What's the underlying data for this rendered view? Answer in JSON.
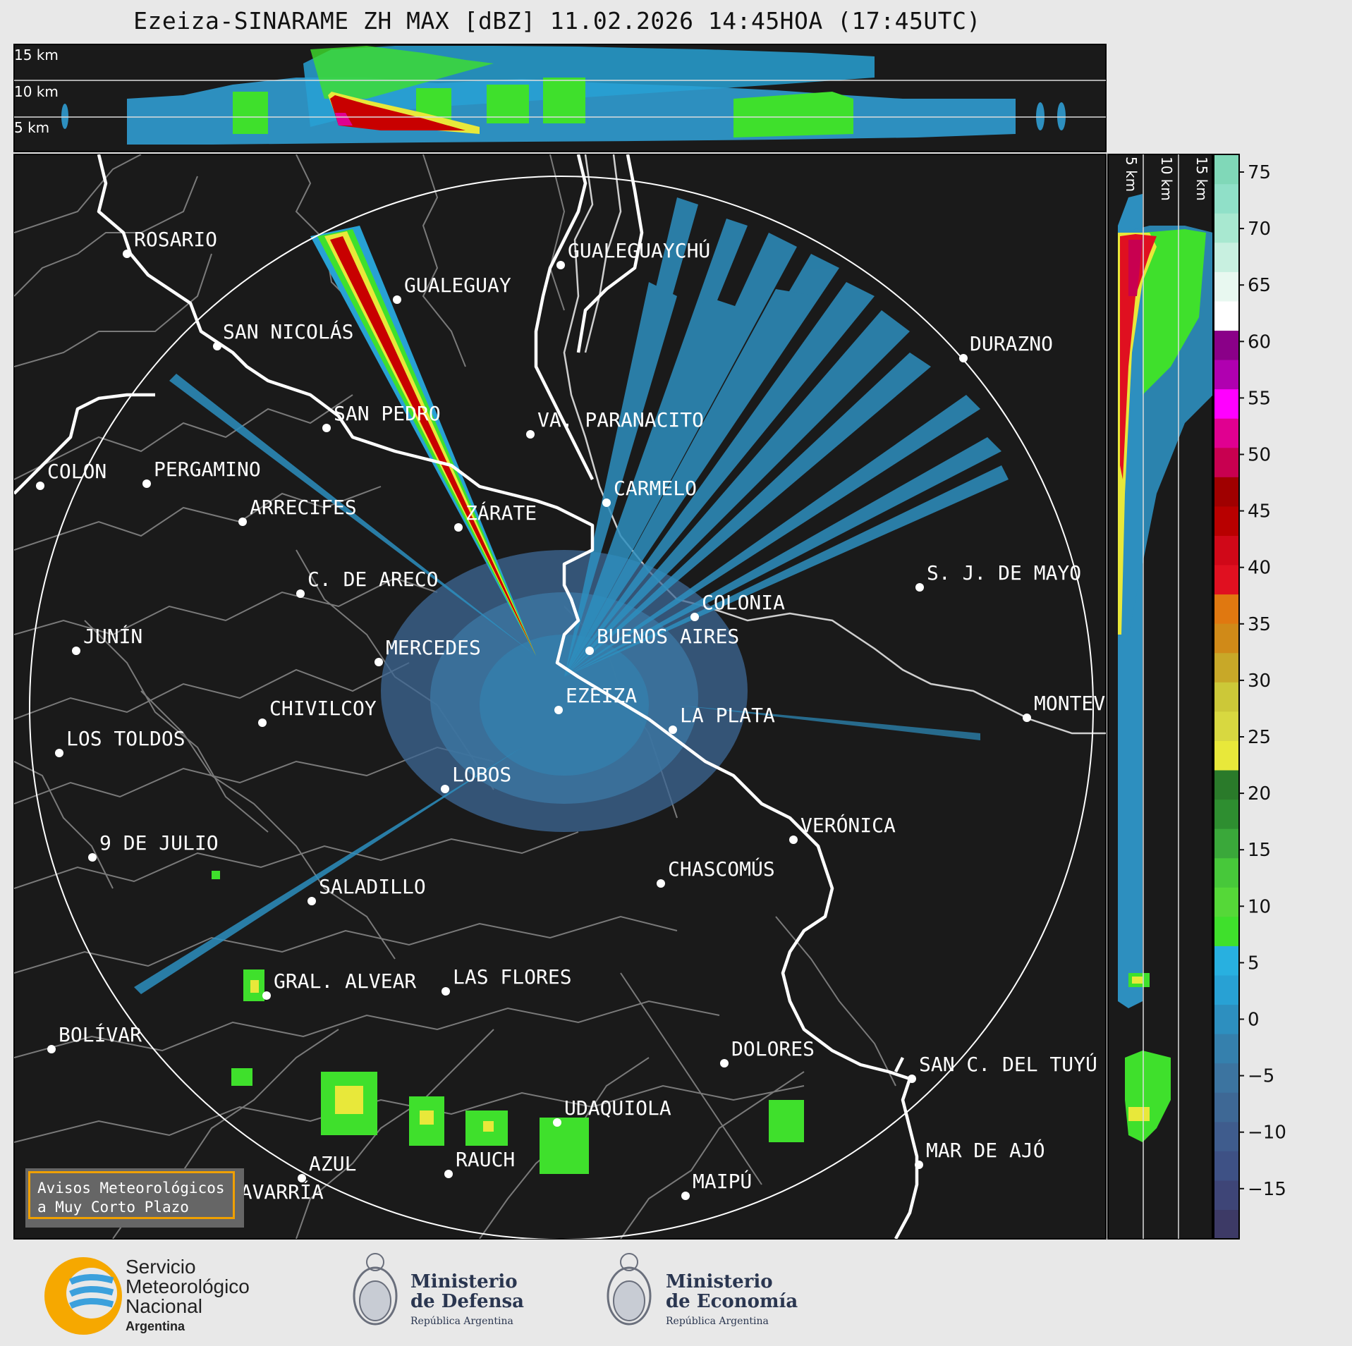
{
  "title": "Ezeiza-SINARAME ZH MAX [dBZ] 11.02.2026 14:45HOA (17:45UTC)",
  "top_panel": {
    "labels": [
      "15 km",
      "10 km",
      "5 km"
    ]
  },
  "side_panel": {
    "labels": [
      "5 km",
      "10 km",
      "15 km"
    ]
  },
  "colorbar": {
    "ticks": [
      "75",
      "70",
      "65",
      "60",
      "55",
      "50",
      "45",
      "40",
      "35",
      "30",
      "25",
      "20",
      "15",
      "10",
      "5",
      "0",
      "−5",
      "−10",
      "−15"
    ],
    "colors": [
      "#3d3a66",
      "#3e4577",
      "#3e5185",
      "#3f5c8d",
      "#3e6895",
      "#3c74a0",
      "#3580ad",
      "#2d8fbf",
      "#28a1d4",
      "#28b0e0",
      "#3fe02c",
      "#55d838",
      "#47c83a",
      "#3aa83a",
      "#2e8e30",
      "#2a7a2a",
      "#e8e83a",
      "#d8d840",
      "#ccc838",
      "#c8a828",
      "#d08a18",
      "#e07810",
      "#e01020",
      "#d00818",
      "#b80000",
      "#a00000",
      "#c80050",
      "#e00090",
      "#ff00ff",
      "#b000b0",
      "#8a0088",
      "#ffffff",
      "#e8f8f0",
      "#c8f0e0",
      "#a8e8d0",
      "#90e0c8",
      "#80d8b8"
    ]
  },
  "legend": {
    "line1": "Avisos Meteorológicos",
    "line2": "a Muy Corto Plazo"
  },
  "cities": [
    {
      "name": "ROSARIO"
    },
    {
      "name": "GUALEGUAYCHÚ"
    },
    {
      "name": "GUALEGUAY"
    },
    {
      "name": "SAN NICOLÁS"
    },
    {
      "name": "DURAZNO"
    },
    {
      "name": "SAN PEDRO"
    },
    {
      "name": "VA. PARANACITO"
    },
    {
      "name": "COLON"
    },
    {
      "name": "PERGAMINO"
    },
    {
      "name": "CARMELO"
    },
    {
      "name": "ARRECIFES"
    },
    {
      "name": "ZÁRATE"
    },
    {
      "name": "S. J. DE MAYO"
    },
    {
      "name": "C. DE ARECO"
    },
    {
      "name": "COLONIA"
    },
    {
      "name": "JUNÍN"
    },
    {
      "name": "BUENOS AIRES"
    },
    {
      "name": "MERCEDES"
    },
    {
      "name": "EZEIZA"
    },
    {
      "name": "MONTEV"
    },
    {
      "name": "CHIVILCOY"
    },
    {
      "name": "LA PLATA"
    },
    {
      "name": "LOS TOLDOS"
    },
    {
      "name": "LOBOS"
    },
    {
      "name": "VERÓNICA"
    },
    {
      "name": "9 DE JULIO"
    },
    {
      "name": "CHASCOMÚS"
    },
    {
      "name": "SALADILLO"
    },
    {
      "name": "GRAL. ALVEAR"
    },
    {
      "name": "LAS FLORES"
    },
    {
      "name": "BOLÍVAR"
    },
    {
      "name": "DOLORES"
    },
    {
      "name": "SAN C. DEL TUYÚ"
    },
    {
      "name": "UDAQUIOLA"
    },
    {
      "name": "MAR DE AJÓ"
    },
    {
      "name": "AZUL"
    },
    {
      "name": "RAUCH"
    },
    {
      "name": "MAIPÚ"
    },
    {
      "name": "OLAVARRÍA"
    }
  ],
  "logos": {
    "smn": {
      "line1": "Servicio",
      "line2": "Meteorológico",
      "line3": "Nacional",
      "line4": "Argentina"
    },
    "defensa": {
      "line1": "Ministerio",
      "line2": "de Defensa",
      "line3": "República Argentina"
    },
    "economia": {
      "line1": "Ministerio",
      "line2": "de Economía",
      "line3": "República Argentina"
    }
  }
}
